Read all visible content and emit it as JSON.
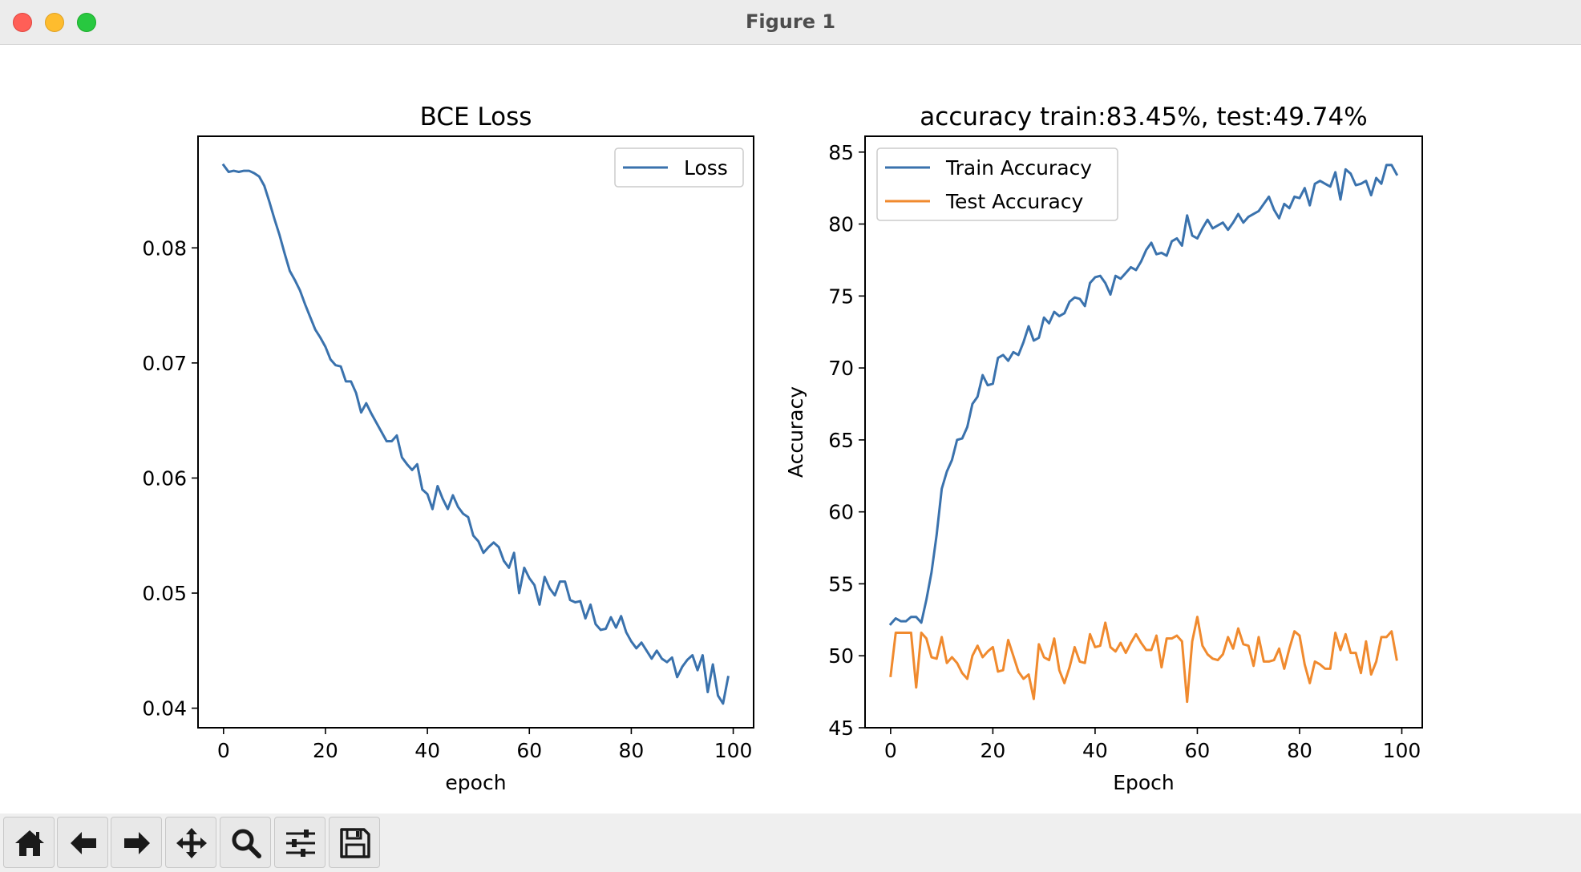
{
  "window": {
    "title": "Figure 1"
  },
  "toolbar": {
    "buttons": [
      {
        "name": "home-icon"
      },
      {
        "name": "back-arrow-icon"
      },
      {
        "name": "forward-arrow-icon"
      },
      {
        "name": "pan-move-icon"
      },
      {
        "name": "zoom-magnifier-icon"
      },
      {
        "name": "configure-subplots-icon"
      },
      {
        "name": "save-figure-icon"
      }
    ]
  },
  "colors": {
    "train": "#3a72ad",
    "test": "#f08a2e",
    "loss": "#3a72ad"
  },
  "chart_data": [
    {
      "type": "line",
      "title": "BCE Loss",
      "xlabel": "epoch",
      "ylabel": "",
      "xlim": [
        -5,
        104
      ],
      "ylim": [
        0.0383,
        0.0897
      ],
      "xticks": [
        0,
        20,
        40,
        60,
        80,
        100
      ],
      "xtick_labels": [
        "0",
        "20",
        "40",
        "60",
        "80",
        "100"
      ],
      "yticks": [
        0.04,
        0.05,
        0.06,
        0.07,
        0.08
      ],
      "ytick_labels": [
        "0.04",
        "0.05",
        "0.06",
        "0.07",
        "0.08"
      ],
      "legend": "upper-right",
      "series": [
        {
          "name": "Loss",
          "color": "#3a72ad",
          "values": [
            0.0872,
            0.0866,
            0.0867,
            0.0866,
            0.0867,
            0.0867,
            0.0865,
            0.0862,
            0.0854,
            0.084,
            0.0825,
            0.0811,
            0.0795,
            0.078,
            0.0772,
            0.0763,
            0.0751,
            0.074,
            0.0729,
            0.0722,
            0.0714,
            0.0703,
            0.0698,
            0.0697,
            0.0684,
            0.0684,
            0.0674,
            0.0657,
            0.0665,
            0.0656,
            0.0648,
            0.064,
            0.0632,
            0.0632,
            0.0637,
            0.0618,
            0.0612,
            0.0607,
            0.0612,
            0.059,
            0.0586,
            0.0573,
            0.0593,
            0.0582,
            0.0573,
            0.0585,
            0.0575,
            0.0569,
            0.0566,
            0.055,
            0.0545,
            0.0535,
            0.054,
            0.0544,
            0.054,
            0.0528,
            0.0522,
            0.0535,
            0.05,
            0.0522,
            0.0513,
            0.0507,
            0.049,
            0.0514,
            0.0504,
            0.0498,
            0.051,
            0.051,
            0.0494,
            0.0492,
            0.0493,
            0.0478,
            0.049,
            0.0473,
            0.0468,
            0.0469,
            0.0479,
            0.047,
            0.048,
            0.0466,
            0.0458,
            0.0452,
            0.0457,
            0.045,
            0.0443,
            0.045,
            0.0443,
            0.044,
            0.0444,
            0.0427,
            0.0436,
            0.0442,
            0.0446,
            0.0433,
            0.0446,
            0.0414,
            0.0438,
            0.0411,
            0.0404,
            0.0427
          ]
        }
      ]
    },
    {
      "type": "line",
      "title": "accuracy train:83.45%, test:49.74%",
      "xlabel": "Epoch",
      "ylabel": "Accuracy",
      "xlim": [
        -5,
        104
      ],
      "ylim": [
        45,
        86.1
      ],
      "xticks": [
        0,
        20,
        40,
        60,
        80,
        100
      ],
      "xtick_labels": [
        "0",
        "20",
        "40",
        "60",
        "80",
        "100"
      ],
      "yticks": [
        45,
        50,
        55,
        60,
        65,
        70,
        75,
        80,
        85
      ],
      "ytick_labels": [
        "45",
        "50",
        "55",
        "60",
        "65",
        "70",
        "75",
        "80",
        "85"
      ],
      "legend": "upper-left",
      "series": [
        {
          "name": "Train Accuracy",
          "color": "#3a72ad",
          "values": [
            52.2,
            52.6,
            52.4,
            52.4,
            52.7,
            52.7,
            52.3,
            53.9,
            55.8,
            58.4,
            61.6,
            62.8,
            63.6,
            65.0,
            65.1,
            65.9,
            67.5,
            68.0,
            69.5,
            68.8,
            68.9,
            70.7,
            70.9,
            70.5,
            71.1,
            70.9,
            71.8,
            72.9,
            71.9,
            72.1,
            73.5,
            73.1,
            73.9,
            73.6,
            73.8,
            74.6,
            74.9,
            74.8,
            74.3,
            75.9,
            76.3,
            76.4,
            75.9,
            75.1,
            76.4,
            76.2,
            76.6,
            77.0,
            76.8,
            77.4,
            78.2,
            78.7,
            77.9,
            78.0,
            77.8,
            78.8,
            79.0,
            78.5,
            80.6,
            79.2,
            79.0,
            79.7,
            80.3,
            79.7,
            79.9,
            80.1,
            79.6,
            80.1,
            80.7,
            80.1,
            80.5,
            80.7,
            80.9,
            81.4,
            81.9,
            81.0,
            80.4,
            81.4,
            81.1,
            81.9,
            81.8,
            82.5,
            81.3,
            82.8,
            83.0,
            82.8,
            82.6,
            83.6,
            81.7,
            83.8,
            83.5,
            82.7,
            82.8,
            83.0,
            82.0,
            83.2,
            82.8,
            84.1,
            84.1,
            83.45
          ]
        },
        {
          "name": "Test Accuracy",
          "color": "#f08a2e",
          "values": [
            48.6,
            51.6,
            51.6,
            51.6,
            51.6,
            47.8,
            51.6,
            51.2,
            49.9,
            49.8,
            51.3,
            49.5,
            49.9,
            49.5,
            48.8,
            48.4,
            50.0,
            50.7,
            49.9,
            50.3,
            50.6,
            48.9,
            49.0,
            51.1,
            50.0,
            48.9,
            48.4,
            48.7,
            47.0,
            50.8,
            49.9,
            49.7,
            51.2,
            49.0,
            48.1,
            49.2,
            50.6,
            49.6,
            49.5,
            51.5,
            50.6,
            50.7,
            52.3,
            50.6,
            50.3,
            50.9,
            50.2,
            50.9,
            51.5,
            50.9,
            50.4,
            50.4,
            51.4,
            49.2,
            51.2,
            51.2,
            51.4,
            51.0,
            46.8,
            51.0,
            52.7,
            50.7,
            50.1,
            49.8,
            49.7,
            50.1,
            51.3,
            50.5,
            51.9,
            50.8,
            50.7,
            49.3,
            51.3,
            49.6,
            49.6,
            49.7,
            50.5,
            49.1,
            50.5,
            51.7,
            51.4,
            49.4,
            48.1,
            49.6,
            49.4,
            49.1,
            49.1,
            51.6,
            50.4,
            51.5,
            50.2,
            50.2,
            48.8,
            51.0,
            48.7,
            49.6,
            51.3,
            51.3,
            51.7,
            49.74
          ]
        }
      ]
    }
  ]
}
